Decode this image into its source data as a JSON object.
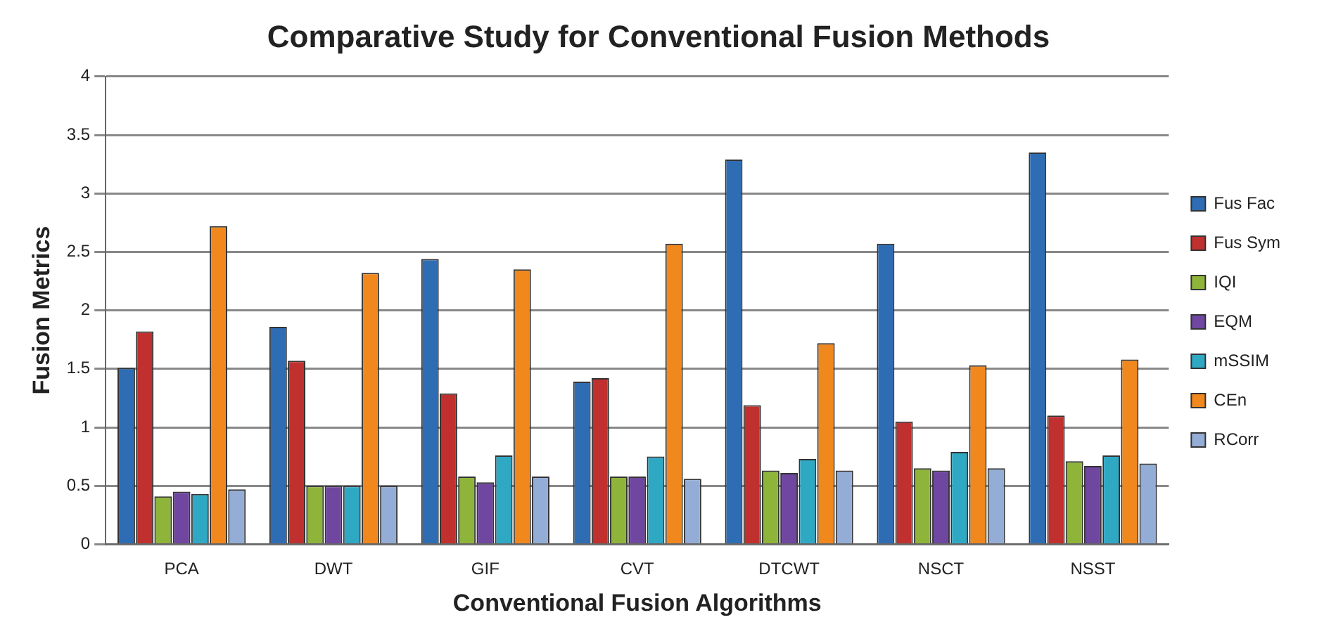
{
  "chart_data": {
    "type": "bar",
    "title": "Comparative Study for Conventional Fusion Methods",
    "xlabel": "Conventional Fusion Algorithms",
    "ylabel": "Fusion Metrics",
    "categories": [
      "PCA",
      "DWT",
      "GIF",
      "CVT",
      "DTCWT",
      "NSCT",
      "NSST"
    ],
    "series": [
      {
        "name": "Fus Fac",
        "color": "#2e6db4",
        "values": [
          1.51,
          1.86,
          2.44,
          1.39,
          3.29,
          2.57,
          3.35
        ]
      },
      {
        "name": "Fus Sym",
        "color": "#c0302e",
        "values": [
          1.82,
          1.57,
          1.29,
          1.42,
          1.19,
          1.05,
          1.1
        ]
      },
      {
        "name": "IQI",
        "color": "#8fb43a",
        "values": [
          0.41,
          0.5,
          0.58,
          0.58,
          0.63,
          0.65,
          0.71
        ]
      },
      {
        "name": "EQM",
        "color": "#6f46a0",
        "values": [
          0.45,
          0.5,
          0.53,
          0.58,
          0.61,
          0.63,
          0.67
        ]
      },
      {
        "name": "mSSIM",
        "color": "#2fa8c4",
        "values": [
          0.43,
          0.5,
          0.76,
          0.75,
          0.73,
          0.79,
          0.76
        ]
      },
      {
        "name": "CEn",
        "color": "#f0881e",
        "values": [
          2.72,
          2.32,
          2.35,
          2.57,
          1.72,
          1.53,
          1.58
        ]
      },
      {
        "name": "RCorr",
        "color": "#94add6",
        "values": [
          0.47,
          0.5,
          0.58,
          0.56,
          0.63,
          0.65,
          0.69
        ]
      }
    ],
    "ylim": [
      0,
      4
    ],
    "yticks": [
      0,
      0.5,
      1,
      1.5,
      2,
      2.5,
      3,
      3.5,
      4
    ],
    "grid": "y",
    "legend": "right"
  }
}
